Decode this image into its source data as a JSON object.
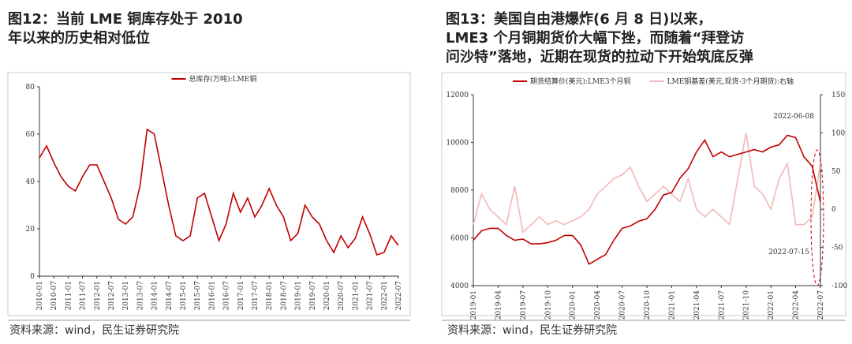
{
  "chart_data": [
    {
      "type": "line",
      "title": "图12：当前 LME 铜库存处于 2010 年以来的历史相对低位",
      "source": "资料来源：wind，民生证券研究院",
      "categories": [
        "2010-01",
        null,
        "2010-07",
        null,
        "2011-01",
        null,
        "2011-07",
        null,
        "2012-01",
        null,
        "2012-07",
        null,
        "2013-01",
        null,
        "2013-07",
        null,
        "2014-01",
        null,
        "2014-07",
        null,
        "2015-01",
        null,
        "2015-07",
        null,
        "2016-01",
        null,
        "2016-07",
        null,
        "2017-01",
        null,
        "2017-07",
        null,
        "2018-01",
        null,
        "2018-07",
        null,
        "2019-01",
        null,
        "2019-07",
        null,
        "2020-01",
        null,
        "2020-07",
        null,
        "2021-01",
        null,
        "2021-07",
        null,
        "2022-01",
        null,
        "2022-07"
      ],
      "series": [
        {
          "name": "总库存(万吨):LME铜",
          "color": "#c00000",
          "values": [
            50,
            55,
            48,
            42,
            38,
            36,
            42,
            47,
            47,
            40,
            33,
            24,
            22,
            25,
            38,
            62,
            60,
            45,
            30,
            17,
            15,
            17,
            33,
            35,
            25,
            15,
            22,
            35,
            27,
            33,
            25,
            30,
            37,
            30,
            25,
            15,
            18,
            30,
            25,
            22,
            15,
            10,
            17,
            12,
            16,
            25,
            18,
            9,
            10,
            17,
            13
          ]
        }
      ],
      "ylim": [
        0,
        80
      ],
      "yticks": [
        0,
        20,
        40,
        60,
        80
      ]
    },
    {
      "type": "line",
      "title": "图13：美国自由港爆炸(6 月 8 日)以来，LME3 个月铜期货价大幅下挫，而随着“拜登访问沙特”落地，近期在现货的拉动下开始筑底反弹",
      "source": "资料来源：wind，民生证券研究院",
      "categories": [
        "2019-01",
        null,
        null,
        "2019-04",
        null,
        null,
        "2019-07",
        null,
        null,
        "2019-10",
        null,
        null,
        "2020-01",
        null,
        null,
        "2020-04",
        null,
        null,
        "2020-07",
        null,
        null,
        "2020-10",
        null,
        null,
        "2021-01",
        null,
        null,
        "2021-04",
        null,
        null,
        "2021-07",
        null,
        null,
        "2021-10",
        null,
        null,
        "2022-01",
        null,
        null,
        "2022-04",
        null,
        null,
        "2022-07"
      ],
      "series": [
        {
          "name": "期货结算价(美元):LME3个月铜",
          "color": "#c00000",
          "values": [
            5900,
            6300,
            6400,
            6400,
            6100,
            5900,
            5950,
            5750,
            5750,
            5800,
            5900,
            6100,
            6100,
            5700,
            4900,
            5100,
            5300,
            5900,
            6400,
            6500,
            6700,
            6800,
            7200,
            7800,
            7900,
            8500,
            8900,
            9600,
            10100,
            9400,
            9600,
            9400,
            9500,
            9600,
            9700,
            9600,
            9800,
            9900,
            10300,
            10200,
            9400,
            9000,
            7500
          ]
        },
        {
          "name": "LME铜基差(美元,现货-3个月期货):右轴",
          "color": "#f2b8b8",
          "axis": "y2",
          "values": [
            -20,
            20,
            0,
            -10,
            -20,
            30,
            -30,
            -20,
            -10,
            -20,
            -15,
            -20,
            -15,
            -10,
            0,
            20,
            30,
            40,
            45,
            55,
            30,
            10,
            20,
            30,
            20,
            10,
            40,
            0,
            -10,
            0,
            -10,
            -20,
            40,
            100,
            30,
            20,
            0,
            40,
            60,
            -20,
            -20,
            -10,
            60
          ]
        }
      ],
      "ylim": [
        4000,
        12000
      ],
      "yticks": [
        4000,
        6000,
        8000,
        10000,
        12000
      ],
      "y2lim": [
        -100,
        150
      ],
      "y2ticks": [
        -100,
        -50,
        0,
        50,
        100,
        150
      ],
      "annotations": [
        "2022-06-08",
        "2022-07-15"
      ]
    }
  ]
}
